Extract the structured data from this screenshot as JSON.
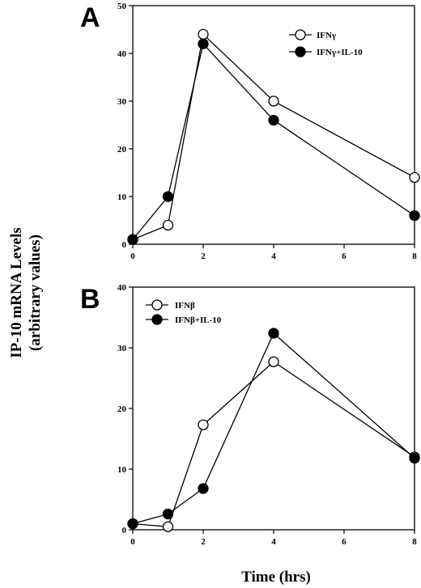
{
  "ylabel_line1": "IP-10 mRNA Levels",
  "ylabel_line2": "(arbitrary values)",
  "xlabel": "Time (hrs)",
  "chart_data": [
    {
      "type": "line",
      "panel": "A",
      "x": [
        0,
        1,
        2,
        4,
        8
      ],
      "xticks": [
        0,
        2,
        4,
        6,
        8
      ],
      "xlim": [
        0,
        8
      ],
      "ylim": [
        0,
        50
      ],
      "yticks": [
        0,
        10,
        20,
        30,
        40,
        50
      ],
      "legend_position": "top-right",
      "series": [
        {
          "name": "IFNγ",
          "marker": "open-circle",
          "values": [
            1,
            4,
            44,
            30,
            14
          ]
        },
        {
          "name": "IFNγ+IL-10",
          "marker": "filled-circle",
          "values": [
            1,
            10,
            42,
            26,
            6
          ]
        }
      ]
    },
    {
      "type": "line",
      "panel": "B",
      "x": [
        0,
        1,
        2,
        4,
        8
      ],
      "xticks": [
        0,
        2,
        4,
        6,
        8
      ],
      "xlim": [
        0,
        8
      ],
      "ylim": [
        0,
        40
      ],
      "yticks": [
        0,
        10,
        20,
        30,
        40
      ],
      "legend_position": "top-left",
      "series": [
        {
          "name": "IFNβ",
          "marker": "open-circle",
          "values": [
            1,
            0.5,
            17.3,
            27.7,
            12
          ]
        },
        {
          "name": "IFNβ+IL-10",
          "marker": "filled-circle",
          "values": [
            1,
            2.6,
            6.8,
            32.4,
            11.8
          ]
        }
      ]
    }
  ]
}
